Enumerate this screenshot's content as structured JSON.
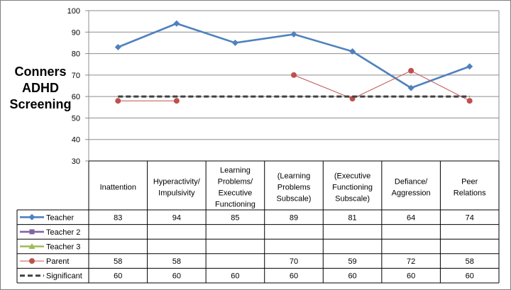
{
  "chart_data": {
    "type": "line",
    "title_lines": [
      "Conners",
      "ADHD",
      "Screening"
    ],
    "ylim": [
      30,
      100
    ],
    "yticks": [
      30,
      40,
      50,
      60,
      70,
      80,
      90,
      100
    ],
    "grid": true,
    "categories": [
      [
        "Inattention"
      ],
      [
        "Hyperactivity/",
        "Impulsivity"
      ],
      [
        "Learning",
        "Problems/",
        "Executive",
        "Functioning"
      ],
      [
        "(Learning",
        "Problems",
        "Subscale)"
      ],
      [
        "(Executive",
        "Functioning",
        "Subscale)"
      ],
      [
        "Defiance/",
        "Aggression"
      ],
      [
        "Peer",
        "Relations"
      ]
    ],
    "series": [
      {
        "name": "Teacher",
        "color": "#4f81bd",
        "marker": "diamond",
        "values": [
          83,
          94,
          85,
          89,
          81,
          64,
          74
        ]
      },
      {
        "name": "Teacher 2",
        "color": "#8064a2",
        "marker": "square",
        "values": [
          null,
          null,
          null,
          null,
          null,
          null,
          null
        ]
      },
      {
        "name": "Teacher 3",
        "color": "#9bbb59",
        "marker": "triangle",
        "values": [
          null,
          null,
          null,
          null,
          null,
          null,
          null
        ]
      },
      {
        "name": "Parent",
        "color": "#c0504d",
        "marker": "circle",
        "values": [
          58,
          58,
          null,
          70,
          59,
          72,
          58
        ]
      },
      {
        "name": "Significant",
        "color": "#404040",
        "marker": "dash",
        "values": [
          60,
          60,
          60,
          60,
          60,
          60,
          60
        ]
      }
    ]
  }
}
